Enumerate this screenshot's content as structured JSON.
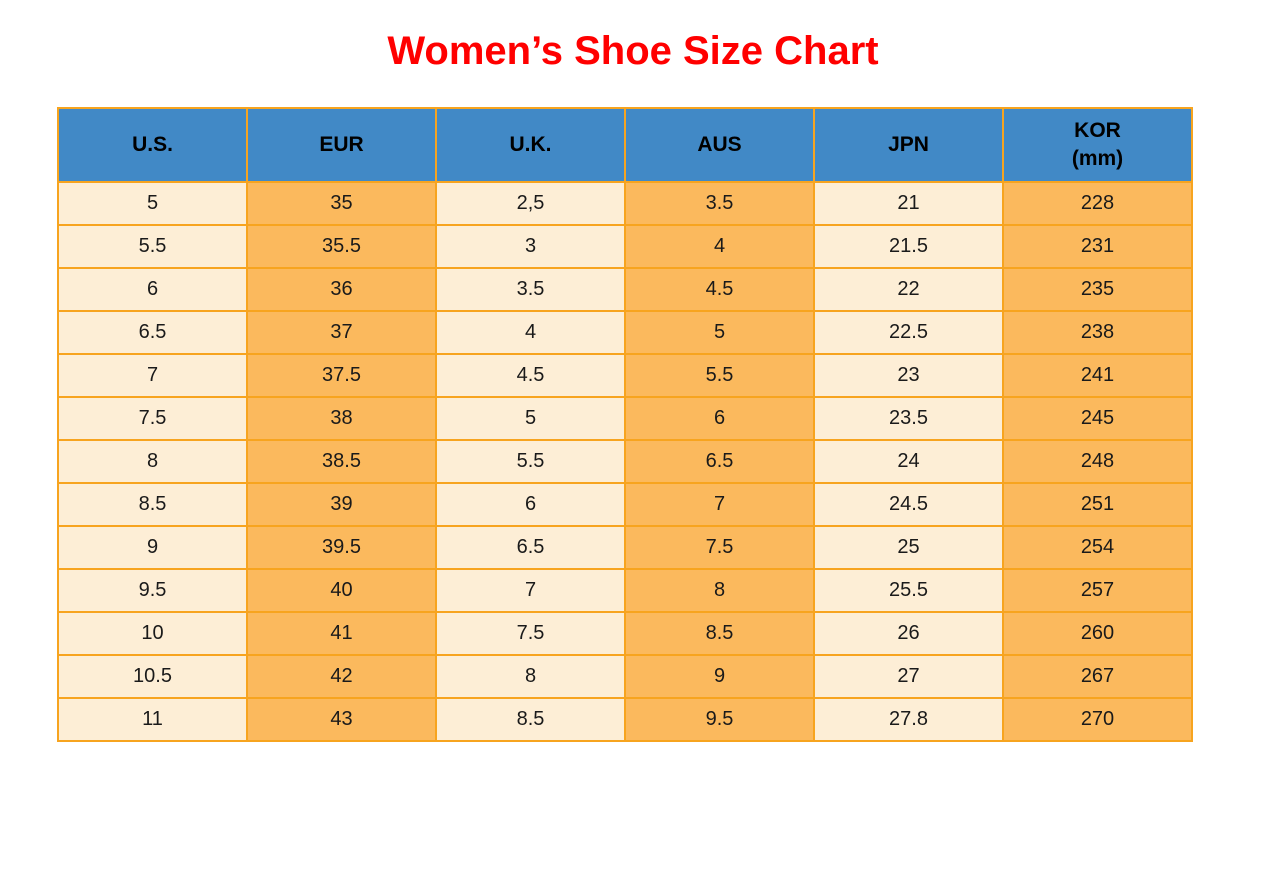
{
  "page": {
    "title": "Women’s Shoe Size Chart",
    "title_color": "#FF0000"
  },
  "colors": {
    "header_bg": "#4189C6",
    "cell_cream": "#FDEED6",
    "cell_orange": "#FBB95D",
    "border": "#F7A41F",
    "text": "#1A1A1A"
  },
  "table": {
    "header_labels": [
      "U.S.",
      "EUR",
      "U.K.",
      "AUS",
      "JPN",
      "KOR\n(mm)"
    ]
  },
  "chart_data": {
    "type": "table",
    "title": "Women’s Shoe Size Chart",
    "columns": [
      "U.S.",
      "EUR",
      "U.K.",
      "AUS",
      "JPN",
      "KOR (mm)"
    ],
    "rows": [
      [
        "5",
        "35",
        "2,5",
        "3.5",
        "21",
        "228"
      ],
      [
        "5.5",
        "35.5",
        "3",
        "4",
        "21.5",
        "231"
      ],
      [
        "6",
        "36",
        "3.5",
        "4.5",
        "22",
        "235"
      ],
      [
        "6.5",
        "37",
        "4",
        "5",
        "22.5",
        "238"
      ],
      [
        "7",
        "37.5",
        "4.5",
        "5.5",
        "23",
        "241"
      ],
      [
        "7.5",
        "38",
        "5",
        "6",
        "23.5",
        "245"
      ],
      [
        "8",
        "38.5",
        "5.5",
        "6.5",
        "24",
        "248"
      ],
      [
        "8.5",
        "39",
        "6",
        "7",
        "24.5",
        "251"
      ],
      [
        "9",
        "39.5",
        "6.5",
        "7.5",
        "25",
        "254"
      ],
      [
        "9.5",
        "40",
        "7",
        "8",
        "25.5",
        "257"
      ],
      [
        "10",
        "41",
        "7.5",
        "8.5",
        "26",
        "260"
      ],
      [
        "10.5",
        "42",
        "8",
        "9",
        "27",
        "267"
      ],
      [
        "11",
        "43",
        "8.5",
        "9.5",
        "27.8",
        "270"
      ]
    ],
    "layout": {
      "column_fill_pattern": [
        "cream",
        "orange",
        "cream",
        "orange",
        "cream",
        "orange"
      ],
      "header_fill": "blue",
      "grid": true
    }
  }
}
